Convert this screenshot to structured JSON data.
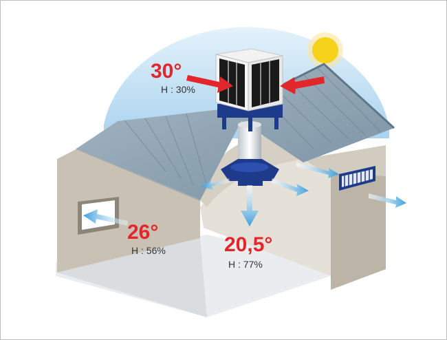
{
  "readings": {
    "outside": {
      "temp": "30°",
      "humidity": "H : 30%"
    },
    "room": {
      "temp": "26°",
      "humidity": "H : 56%"
    },
    "center": {
      "temp": "20,5°",
      "humidity": "H : 77%"
    }
  },
  "colors": {
    "sky": "#b9dcf2",
    "sun": "#f7d21a",
    "roof": "#8aa0b0",
    "wall": "#c6bfb2",
    "duct": "#1e3a8a",
    "arrow_hot": "#e3262b",
    "arrow_cool": "#4aa8e0",
    "label_red": "#e3262b"
  },
  "icons": {
    "sun": "sun-icon",
    "cooler": "evaporative-cooler-icon",
    "vent": "roof-vent-icon"
  }
}
